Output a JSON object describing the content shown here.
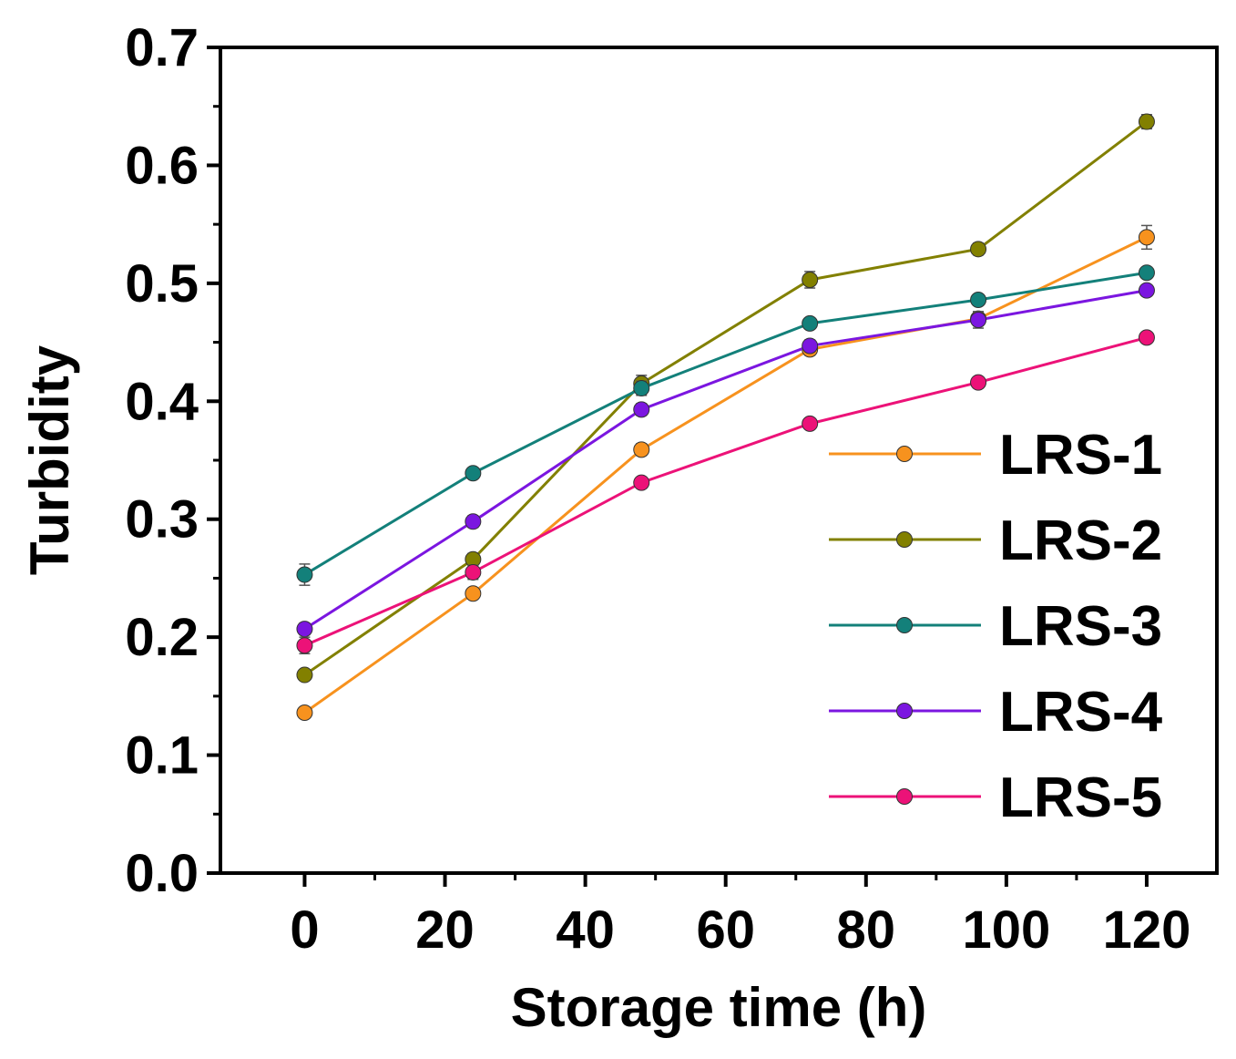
{
  "chart_data": {
    "type": "line",
    "title": "",
    "xlabel": "Storage time (h)",
    "ylabel": "Turbidity",
    "xlim": [
      -12,
      130
    ],
    "ylim": [
      0.0,
      0.7
    ],
    "xticks": [
      0,
      20,
      40,
      60,
      80,
      100,
      120
    ],
    "xtick_labels": [
      "0",
      "20",
      "40",
      "60",
      "80",
      "100",
      "120"
    ],
    "yticks": [
      0.0,
      0.1,
      0.2,
      0.3,
      0.4,
      0.5,
      0.6,
      0.7
    ],
    "ytick_labels": [
      "0.0",
      "0.1",
      "0.2",
      "0.3",
      "0.4",
      "0.5",
      "0.6",
      "0.7"
    ],
    "grid": false,
    "legend_position": "bottom-right",
    "x": [
      0,
      24,
      48,
      72,
      96,
      120
    ],
    "series": [
      {
        "name": "LRS-1",
        "color": "#F7921E",
        "values": [
          0.136,
          0.237,
          0.359,
          0.444,
          0.47,
          0.539
        ],
        "errors": [
          0.004,
          0.004,
          0.005,
          0.005,
          0.006,
          0.01
        ]
      },
      {
        "name": "LRS-2",
        "color": "#828000",
        "values": [
          0.168,
          0.266,
          0.415,
          0.503,
          0.529,
          0.637
        ],
        "errors": [
          0.004,
          0.005,
          0.007,
          0.007,
          0.005,
          0.006
        ]
      },
      {
        "name": "LRS-3",
        "color": "#13807A",
        "values": [
          0.253,
          0.339,
          0.411,
          0.466,
          0.486,
          0.509
        ],
        "errors": [
          0.009,
          0.004,
          0.006,
          0.004,
          0.004,
          0.004
        ]
      },
      {
        "name": "LRS-4",
        "color": "#7B16E0",
        "values": [
          0.207,
          0.298,
          0.393,
          0.447,
          0.469,
          0.494
        ],
        "errors": [
          0.005,
          0.005,
          0.005,
          0.005,
          0.007,
          0.004
        ]
      },
      {
        "name": "LRS-5",
        "color": "#EC1278",
        "values": [
          0.193,
          0.255,
          0.331,
          0.381,
          0.416,
          0.454
        ],
        "errors": [
          0.007,
          0.006,
          0.004,
          0.004,
          0.004,
          0.004
        ]
      }
    ]
  }
}
